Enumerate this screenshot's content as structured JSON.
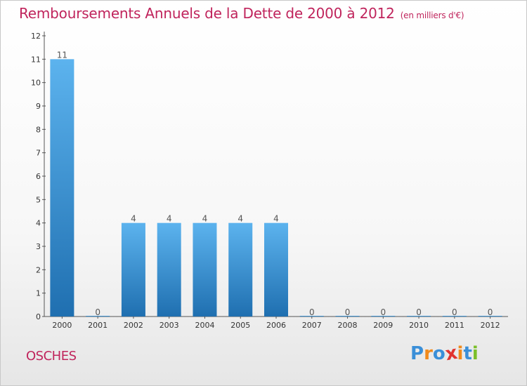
{
  "header": {
    "title": "Remboursements Annuels de la Dette de 2000 à 2012",
    "unit": "(en milliers d'€)"
  },
  "commune": "OSCHES",
  "logo": {
    "text": "Proxiti",
    "letters": [
      {
        "ch": "P",
        "color": "#3a8fd8"
      },
      {
        "ch": "r",
        "color": "#f08a1c"
      },
      {
        "ch": "o",
        "color": "#3a8fd8"
      },
      {
        "ch": "x",
        "color": "#e0332f"
      },
      {
        "ch": "i",
        "color": "#f08a1c"
      },
      {
        "ch": "t",
        "color": "#3a8fd8"
      },
      {
        "ch": "i",
        "color": "#7bbf2a"
      }
    ]
  },
  "chart_data": {
    "type": "bar",
    "title": "Remboursements Annuels de la Dette de 2000 à 2012",
    "subtitle": "(en milliers d'€)",
    "xlabel": "",
    "ylabel": "",
    "categories": [
      "2000",
      "2001",
      "2002",
      "2003",
      "2004",
      "2005",
      "2006",
      "2007",
      "2008",
      "2009",
      "2010",
      "2011",
      "2012"
    ],
    "values": [
      11,
      0,
      4,
      4,
      4,
      4,
      4,
      0,
      0,
      0,
      0,
      0,
      0
    ],
    "ylim": [
      0,
      12
    ],
    "yticks": [
      0,
      1,
      2,
      3,
      4,
      5,
      6,
      7,
      8,
      9,
      10,
      11,
      12
    ],
    "grid": false,
    "legend": "none",
    "colors": {
      "bar_light": "#5aaee8",
      "bar_dark": "#1f6fb0",
      "axis": "#444444",
      "title": "#c0245c"
    }
  }
}
